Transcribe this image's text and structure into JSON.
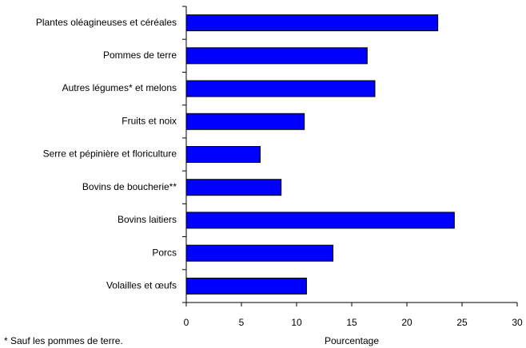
{
  "chart_data": {
    "type": "barh",
    "categories": [
      "Plantes oléagineuses et céréales",
      "Pommes de terre",
      "Autres légumes* et melons",
      "Fruits et noix",
      "Serre et pépinière et floriculture",
      "Bovins de boucherie**",
      "Bovins laitiers",
      "Porcs",
      "Volailles et œufs"
    ],
    "values": [
      22.8,
      16.4,
      17.1,
      10.7,
      6.7,
      8.6,
      24.3,
      13.3,
      10.9
    ],
    "color": "#0000ff",
    "xlabel": "Pourcentage",
    "footnote": "* Sauf les pommes de terre.",
    "xlim": [
      0,
      30
    ],
    "xticks": [
      0,
      5,
      10,
      15,
      20,
      25,
      30
    ]
  }
}
